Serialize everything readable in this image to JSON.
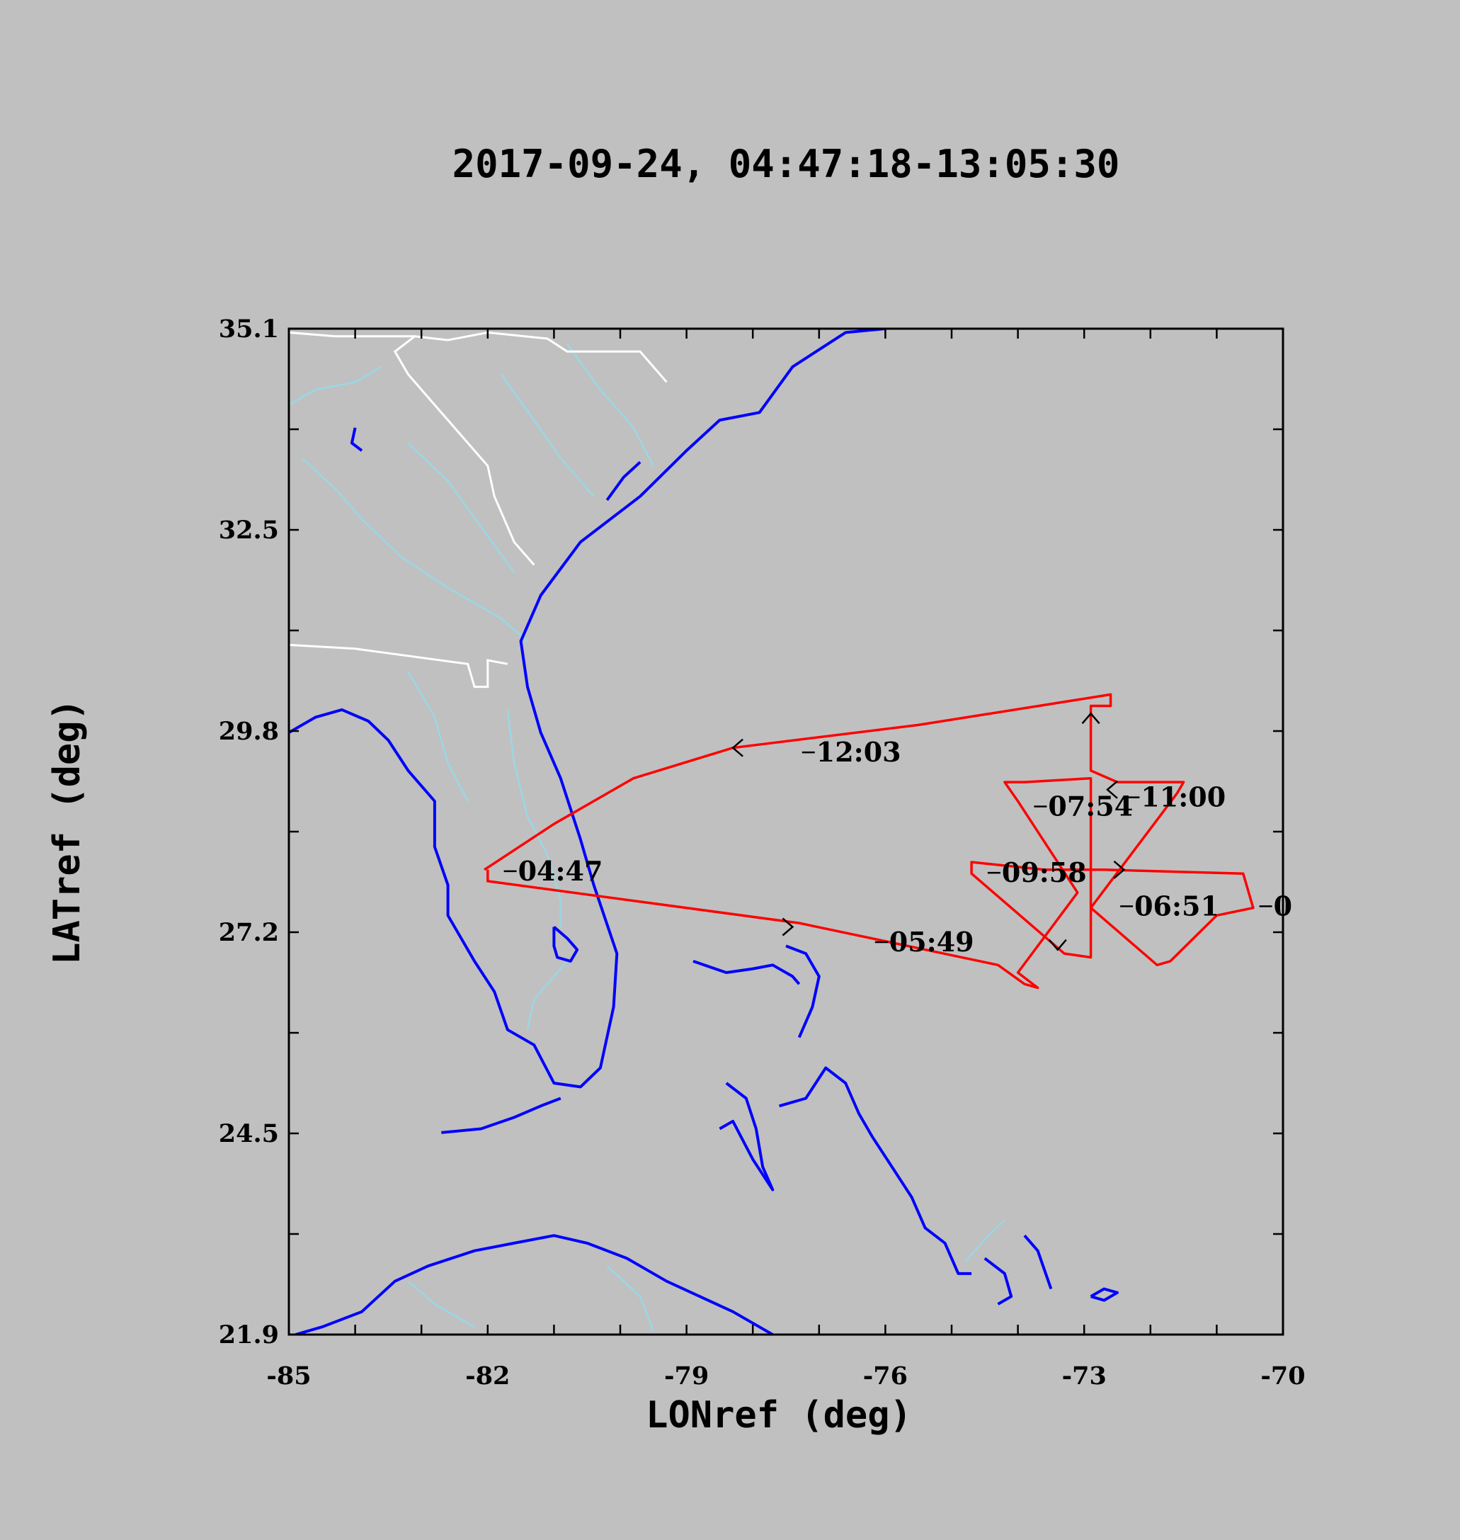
{
  "title": "2017-09-24, 04:47:18-13:05:30",
  "colors": {
    "background": "#c0c0c0",
    "coastline": "#0000ff",
    "rivers": "#9ad7e6",
    "state_borders": "#ffffff",
    "flight_track": "#ff0000"
  },
  "chart_data": {
    "type": "map",
    "xlabel": "LONref (deg)",
    "ylabel": "LATref (deg)",
    "xlim": [
      -85,
      -70
    ],
    "ylim": [
      21.9,
      35.1
    ],
    "x_ticks": [
      "-85",
      "-82",
      "-79",
      "-76",
      "-73",
      "-70"
    ],
    "y_ticks": [
      "35.1",
      "32.5",
      "29.8",
      "27.2",
      "24.5",
      "21.9"
    ],
    "track": [
      [
        -82.05,
        28.0
      ],
      [
        -81.0,
        28.6
      ],
      [
        -79.8,
        29.2
      ],
      [
        -78.3,
        29.6
      ],
      [
        -75.5,
        29.9
      ],
      [
        -72.6,
        30.3
      ],
      [
        -72.6,
        30.15
      ],
      [
        -72.9,
        30.15
      ],
      [
        -72.9,
        29.3
      ],
      [
        -72.5,
        29.15
      ],
      [
        -71.5,
        29.15
      ],
      [
        -71.6,
        29.0
      ],
      [
        -72.9,
        27.5
      ],
      [
        -71.9,
        26.75
      ],
      [
        -71.7,
        26.8
      ],
      [
        -71.0,
        27.4
      ],
      [
        -70.45,
        27.5
      ],
      [
        -70.6,
        27.95
      ],
      [
        -72.7,
        28.0
      ],
      [
        -73.6,
        28.0
      ],
      [
        -74.7,
        28.1
      ],
      [
        -74.7,
        27.95
      ],
      [
        -73.3,
        26.9
      ],
      [
        -72.9,
        26.85
      ],
      [
        -72.9,
        29.2
      ],
      [
        -73.9,
        29.15
      ],
      [
        -74.2,
        29.15
      ],
      [
        -74.0,
        28.9
      ],
      [
        -73.1,
        27.7
      ],
      [
        -74.0,
        26.65
      ],
      [
        -73.7,
        26.45
      ],
      [
        -73.9,
        26.5
      ],
      [
        -74.3,
        26.75
      ],
      [
        -77.3,
        27.3
      ],
      [
        -82.0,
        27.85
      ],
      [
        -82.0,
        28.0
      ]
    ],
    "time_labels": [
      {
        "text": "04:47",
        "lon": -81.5,
        "lat": 27.98
      },
      {
        "text": "05:49",
        "lon": -75.9,
        "lat": 27.05
      },
      {
        "text": "06:51",
        "lon": -72.2,
        "lat": 27.52
      },
      {
        "text": "07:54",
        "lon": -73.5,
        "lat": 28.83
      },
      {
        "text": "09:58",
        "lon": -74.2,
        "lat": 27.96
      },
      {
        "text": "11:00",
        "lon": -72.1,
        "lat": 28.95
      },
      {
        "text": "12:03",
        "lon": -77.0,
        "lat": 29.54
      },
      {
        "text": "0",
        "lon": -70.1,
        "lat": 27.52
      }
    ],
    "direction_arrows": [
      {
        "lon": -78.3,
        "lat": 29.6,
        "dir": "left"
      },
      {
        "lon": -77.4,
        "lat": 27.25,
        "dir": "right"
      },
      {
        "lon": -72.9,
        "lat": 30.05,
        "dir": "up"
      },
      {
        "lon": -72.65,
        "lat": 29.05,
        "dir": "left"
      },
      {
        "lon": -72.4,
        "lat": 28.0,
        "dir": "right"
      },
      {
        "lon": -73.4,
        "lat": 26.95,
        "dir": "down"
      }
    ]
  },
  "coastlines": [
    [
      [
        -85,
        29.8
      ],
      [
        -84.6,
        30.0
      ],
      [
        -84.2,
        30.1
      ],
      [
        -83.8,
        29.95
      ],
      [
        -83.5,
        29.7
      ],
      [
        -83.2,
        29.3
      ],
      [
        -82.8,
        28.9
      ],
      [
        -82.8,
        28.3
      ],
      [
        -82.6,
        27.8
      ],
      [
        -82.6,
        27.4
      ],
      [
        -82.2,
        26.8
      ],
      [
        -81.9,
        26.4
      ],
      [
        -81.7,
        25.9
      ],
      [
        -81.3,
        25.7
      ],
      [
        -81.0,
        25.2
      ],
      [
        -80.6,
        25.15
      ],
      [
        -80.3,
        25.4
      ],
      [
        -80.1,
        26.2
      ],
      [
        -80.05,
        26.9
      ],
      [
        -80.4,
        27.8
      ],
      [
        -80.6,
        28.4
      ],
      [
        -80.9,
        29.2
      ],
      [
        -81.2,
        29.8
      ],
      [
        -81.4,
        30.4
      ],
      [
        -81.5,
        31.0
      ],
      [
        -81.2,
        31.6
      ],
      [
        -80.6,
        32.3
      ],
      [
        -79.7,
        32.9
      ],
      [
        -79.0,
        33.5
      ],
      [
        -78.5,
        33.9
      ],
      [
        -77.9,
        34.0
      ],
      [
        -77.4,
        34.6
      ],
      [
        -76.6,
        35.05
      ],
      [
        -76.0,
        35.1
      ]
    ],
    [
      [
        -82.7,
        24.55
      ],
      [
        -82.1,
        24.6
      ],
      [
        -81.6,
        24.75
      ],
      [
        -81.2,
        24.9
      ],
      [
        -80.9,
        25.0
      ]
    ],
    [
      [
        -78.9,
        26.8
      ],
      [
        -78.4,
        26.65
      ],
      [
        -78.0,
        26.7
      ],
      [
        -77.7,
        26.75
      ],
      [
        -77.4,
        26.6
      ],
      [
        -77.3,
        26.5
      ]
    ],
    [
      [
        -77.5,
        27.0
      ],
      [
        -77.2,
        26.9
      ],
      [
        -77.0,
        26.6
      ],
      [
        -77.1,
        26.2
      ],
      [
        -77.3,
        25.8
      ]
    ],
    [
      [
        -78.4,
        25.2
      ],
      [
        -78.1,
        25.0
      ],
      [
        -77.95,
        24.6
      ],
      [
        -77.85,
        24.1
      ],
      [
        -77.7,
        23.8
      ],
      [
        -78.0,
        24.2
      ],
      [
        -78.3,
        24.7
      ],
      [
        -78.5,
        24.6
      ]
    ],
    [
      [
        -77.6,
        24.9
      ],
      [
        -77.2,
        25.0
      ],
      [
        -76.9,
        25.4
      ],
      [
        -76.6,
        25.2
      ],
      [
        -76.4,
        24.8
      ],
      [
        -76.2,
        24.5
      ],
      [
        -75.9,
        24.1
      ],
      [
        -75.6,
        23.7
      ],
      [
        -75.4,
        23.3
      ],
      [
        -75.1,
        23.1
      ],
      [
        -74.9,
        22.7
      ],
      [
        -74.7,
        22.7
      ]
    ],
    [
      [
        -84.9,
        21.9
      ],
      [
        -84.5,
        22.0
      ],
      [
        -83.9,
        22.2
      ],
      [
        -83.4,
        22.6
      ],
      [
        -82.9,
        22.8
      ],
      [
        -82.2,
        23.0
      ],
      [
        -81.6,
        23.1
      ],
      [
        -81.0,
        23.2
      ],
      [
        -80.5,
        23.1
      ],
      [
        -79.9,
        22.9
      ],
      [
        -79.3,
        22.6
      ],
      [
        -78.8,
        22.4
      ],
      [
        -78.3,
        22.2
      ],
      [
        -77.7,
        21.9
      ]
    ],
    [
      [
        -74.5,
        22.9
      ],
      [
        -74.2,
        22.7
      ],
      [
        -74.1,
        22.4
      ],
      [
        -74.3,
        22.3
      ]
    ],
    [
      [
        -73.9,
        23.2
      ],
      [
        -73.7,
        23.0
      ],
      [
        -73.5,
        22.5
      ]
    ],
    [
      [
        -72.9,
        22.4
      ],
      [
        -72.7,
        22.35
      ],
      [
        -72.5,
        22.45
      ],
      [
        -72.7,
        22.5
      ],
      [
        -72.9,
        22.4
      ]
    ],
    [
      [
        -81.0,
        27.25
      ],
      [
        -80.8,
        27.1
      ],
      [
        -80.65,
        26.95
      ],
      [
        -80.75,
        26.8
      ],
      [
        -80.95,
        26.85
      ],
      [
        -81.0,
        27.0
      ],
      [
        -81.0,
        27.25
      ]
    ],
    [
      [
        -84.0,
        33.8
      ],
      [
        -84.05,
        33.6
      ],
      [
        -83.9,
        33.5
      ]
    ],
    [
      [
        -79.7,
        33.35
      ],
      [
        -79.95,
        33.15
      ],
      [
        -80.2,
        32.85
      ]
    ]
  ],
  "rivers": [
    [
      [
        -85,
        34.1
      ],
      [
        -84.6,
        34.3
      ],
      [
        -84.0,
        34.4
      ],
      [
        -83.6,
        34.6
      ]
    ],
    [
      [
        -84.8,
        33.4
      ],
      [
        -84.3,
        33.0
      ],
      [
        -83.9,
        32.6
      ],
      [
        -83.3,
        32.1
      ],
      [
        -82.6,
        31.7
      ],
      [
        -81.8,
        31.3
      ],
      [
        -81.4,
        31.0
      ]
    ],
    [
      [
        -83.2,
        33.6
      ],
      [
        -82.6,
        33.1
      ],
      [
        -82.1,
        32.5
      ],
      [
        -81.6,
        31.9
      ]
    ],
    [
      [
        -81.8,
        34.5
      ],
      [
        -81.3,
        33.9
      ],
      [
        -80.9,
        33.4
      ],
      [
        -80.4,
        32.9
      ]
    ],
    [
      [
        -80.8,
        34.9
      ],
      [
        -80.3,
        34.3
      ],
      [
        -79.8,
        33.8
      ],
      [
        -79.5,
        33.3
      ]
    ],
    [
      [
        -83.2,
        30.6
      ],
      [
        -82.8,
        30.0
      ],
      [
        -82.6,
        29.4
      ],
      [
        -82.3,
        28.9
      ]
    ],
    [
      [
        -81.7,
        30.1
      ],
      [
        -81.6,
        29.4
      ],
      [
        -81.4,
        28.7
      ],
      [
        -81.1,
        28.2
      ],
      [
        -80.9,
        27.6
      ],
      [
        -80.9,
        27.25
      ]
    ],
    [
      [
        -80.8,
        26.8
      ],
      [
        -81.3,
        26.3
      ],
      [
        -81.4,
        25.9
      ]
    ],
    [
      [
        -83.2,
        22.6
      ],
      [
        -82.8,
        22.3
      ],
      [
        -82.2,
        22.0
      ]
    ],
    [
      [
        -80.2,
        22.8
      ],
      [
        -79.7,
        22.4
      ],
      [
        -79.5,
        21.95
      ]
    ],
    [
      [
        -74.8,
        22.85
      ],
      [
        -74.5,
        23.15
      ],
      [
        -74.2,
        23.4
      ]
    ]
  ],
  "state_borders": [
    [
      [
        -85,
        35.05
      ],
      [
        -84.3,
        35.0
      ],
      [
        -83.1,
        35.0
      ],
      [
        -82.6,
        34.95
      ]
    ],
    [
      [
        -83.1,
        35.0
      ],
      [
        -83.4,
        34.8
      ],
      [
        -83.2,
        34.5
      ],
      [
        -82.8,
        34.1
      ],
      [
        -82.4,
        33.7
      ],
      [
        -82.0,
        33.3
      ],
      [
        -81.9,
        32.9
      ],
      [
        -81.6,
        32.3
      ],
      [
        -81.3,
        32.0
      ]
    ],
    [
      [
        -82.6,
        34.95
      ],
      [
        -82.0,
        35.05
      ],
      [
        -81.1,
        34.97
      ],
      [
        -80.8,
        34.8
      ],
      [
        -79.7,
        34.8
      ],
      [
        -79.3,
        34.4
      ]
    ],
    [
      [
        -85,
        30.95
      ],
      [
        -84.0,
        30.9
      ],
      [
        -82.3,
        30.7
      ],
      [
        -82.2,
        30.4
      ],
      [
        -82.0,
        30.4
      ],
      [
        -82.0,
        30.75
      ],
      [
        -81.7,
        30.7
      ]
    ],
    [
      [
        -85,
        34.8
      ],
      [
        -85,
        35.1
      ]
    ]
  ]
}
